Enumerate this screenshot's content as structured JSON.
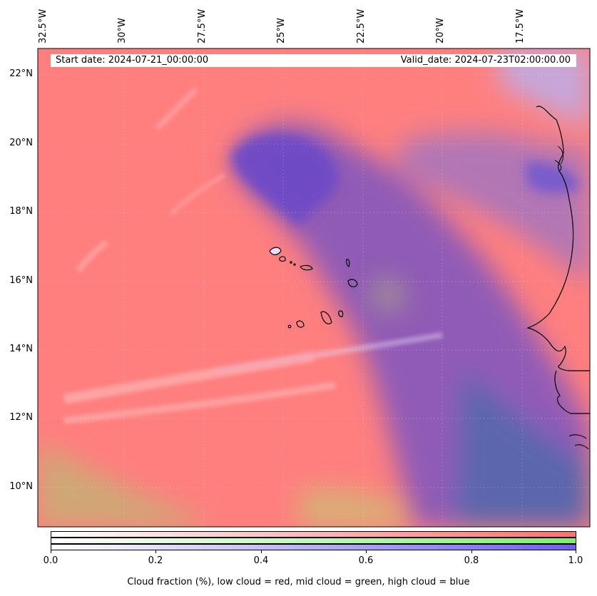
{
  "header": {
    "start_date": "Start date: 2024-07-21_00:00:00",
    "valid_date": "Valid_date: 2024-07-23T02:00:00.00"
  },
  "map": {
    "lon_labels": [
      "32.5°W",
      "30°W",
      "27.5°W",
      "25°W",
      "22.5°W",
      "20°W",
      "17.5°W"
    ],
    "lat_labels": [
      "22°N",
      "20°N",
      "18°N",
      "16°N",
      "14°N",
      "12°N",
      "10°N"
    ],
    "colors": {
      "low_cloud": "#ff7f7f",
      "mid_cloud": "#9fe07f",
      "high_cloud": "#6b50c8",
      "coastline": "#000000"
    }
  },
  "colorbar": {
    "ticks": [
      "0.0",
      "0.2",
      "0.4",
      "0.6",
      "0.8",
      "1.0"
    ],
    "label": "Cloud fraction (%), low cloud = red, mid cloud = green, high cloud = blue",
    "channels": [
      {
        "name": "low",
        "color_start": "#ffffff",
        "color_end": "#ff6f6f"
      },
      {
        "name": "mid",
        "color_start": "#ffffff",
        "color_end": "#7fef6f"
      },
      {
        "name": "high",
        "color_start": "#ffffff",
        "color_end": "#6f5fef"
      }
    ]
  }
}
